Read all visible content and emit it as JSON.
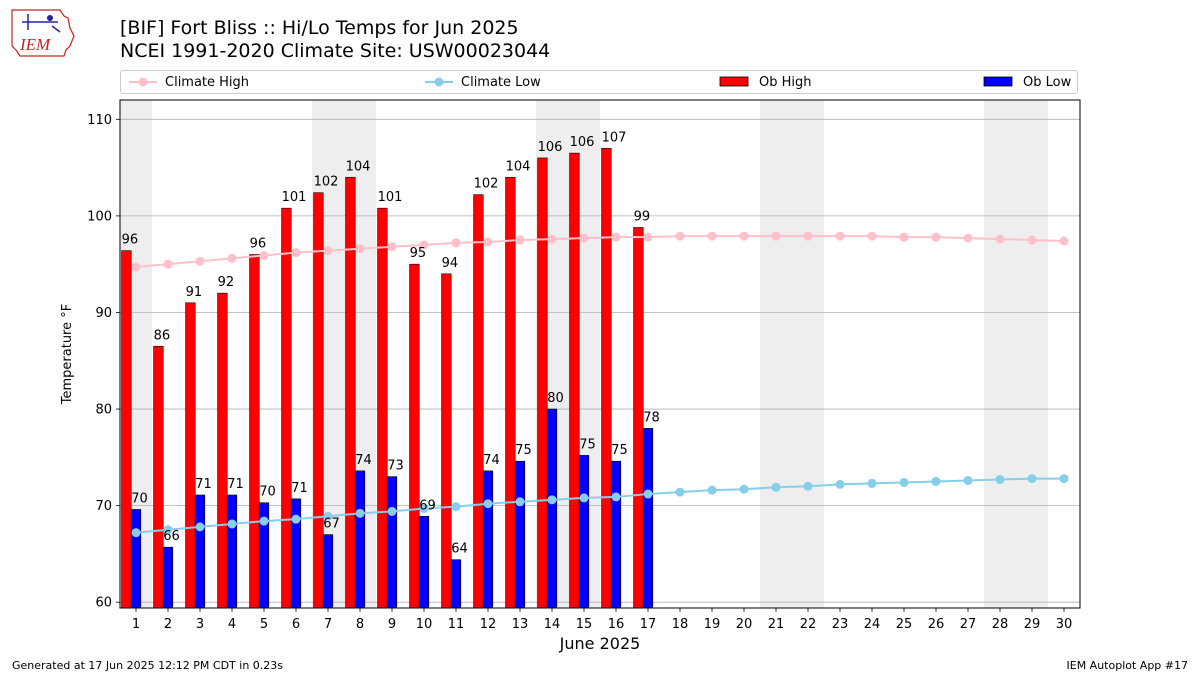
{
  "header": {
    "logo_text": "IEM",
    "title_line1": "[BIF] Fort Bliss :: Hi/Lo Temps for Jun 2025",
    "title_line2": "NCEI 1991-2020 Climate Site: USW00023044"
  },
  "footer": {
    "left": "Generated at 17 Jun 2025 12:12 PM CDT in 0.23s",
    "right": "IEM Autoplot App #17"
  },
  "colors": {
    "climate_high": "#ffc0cb",
    "climate_low": "#87ceeb",
    "ob_high": "#ff0000",
    "ob_low": "#0000ff",
    "weekend_shade": "#eeeeee",
    "grid": "#b0b0b0"
  },
  "legend": {
    "climate_high": "Climate High",
    "climate_low": "Climate Low",
    "ob_high": "Ob High",
    "ob_low": "Ob Low"
  },
  "chart_data": {
    "type": "bar",
    "xlabel": "June 2025",
    "ylabel": "Temperature °F",
    "ylim": [
      59.4,
      112
    ],
    "yticks": [
      60,
      70,
      80,
      90,
      100,
      110
    ],
    "grid": true,
    "legend_position": "top",
    "days": [
      1,
      2,
      3,
      4,
      5,
      6,
      7,
      8,
      9,
      10,
      11,
      12,
      13,
      14,
      15,
      16,
      17,
      18,
      19,
      20,
      21,
      22,
      23,
      24,
      25,
      26,
      27,
      28,
      29,
      30
    ],
    "weekend_days": [
      1,
      7,
      8,
      14,
      15,
      21,
      22,
      28,
      29
    ],
    "series": [
      {
        "name": "Ob High",
        "kind": "bar",
        "values": [
          96.4,
          86.5,
          91,
          92,
          96,
          100.8,
          102.4,
          104,
          100.8,
          95,
          94,
          102.2,
          104,
          106,
          106.5,
          107,
          98.8
        ]
      },
      {
        "name": "Ob Low",
        "kind": "bar",
        "values": [
          69.6,
          65.7,
          71.1,
          71.1,
          70.3,
          70.7,
          67,
          73.6,
          73,
          68.9,
          64.4,
          73.6,
          74.6,
          80,
          75.2,
          74.6,
          78
        ]
      },
      {
        "name": "Climate High",
        "kind": "line",
        "values": [
          94.7,
          95.0,
          95.3,
          95.6,
          95.9,
          96.2,
          96.4,
          96.6,
          96.8,
          97.0,
          97.2,
          97.3,
          97.5,
          97.6,
          97.7,
          97.8,
          97.8,
          97.9,
          97.9,
          97.9,
          97.9,
          97.9,
          97.9,
          97.9,
          97.8,
          97.8,
          97.7,
          97.6,
          97.5,
          97.4
        ]
      },
      {
        "name": "Climate Low",
        "kind": "line",
        "values": [
          67.2,
          67.5,
          67.8,
          68.1,
          68.4,
          68.6,
          68.9,
          69.2,
          69.4,
          69.7,
          69.9,
          70.2,
          70.4,
          70.6,
          70.8,
          70.9,
          71.2,
          71.4,
          71.6,
          71.7,
          71.9,
          72.0,
          72.2,
          72.3,
          72.4,
          72.5,
          72.6,
          72.7,
          72.8,
          72.8
        ]
      }
    ],
    "ob_high_labels": [
      "96",
      "86",
      "91",
      "92",
      "96",
      "101",
      "102",
      "104",
      "101",
      "95",
      "94",
      "102",
      "104",
      "106",
      "106",
      "107",
      "99"
    ],
    "ob_low_labels": [
      "70",
      "66",
      "71",
      "71",
      "70",
      "71",
      "67",
      "74",
      "73",
      "69",
      "64",
      "74",
      "75",
      "80",
      "75",
      "75",
      "78"
    ]
  }
}
